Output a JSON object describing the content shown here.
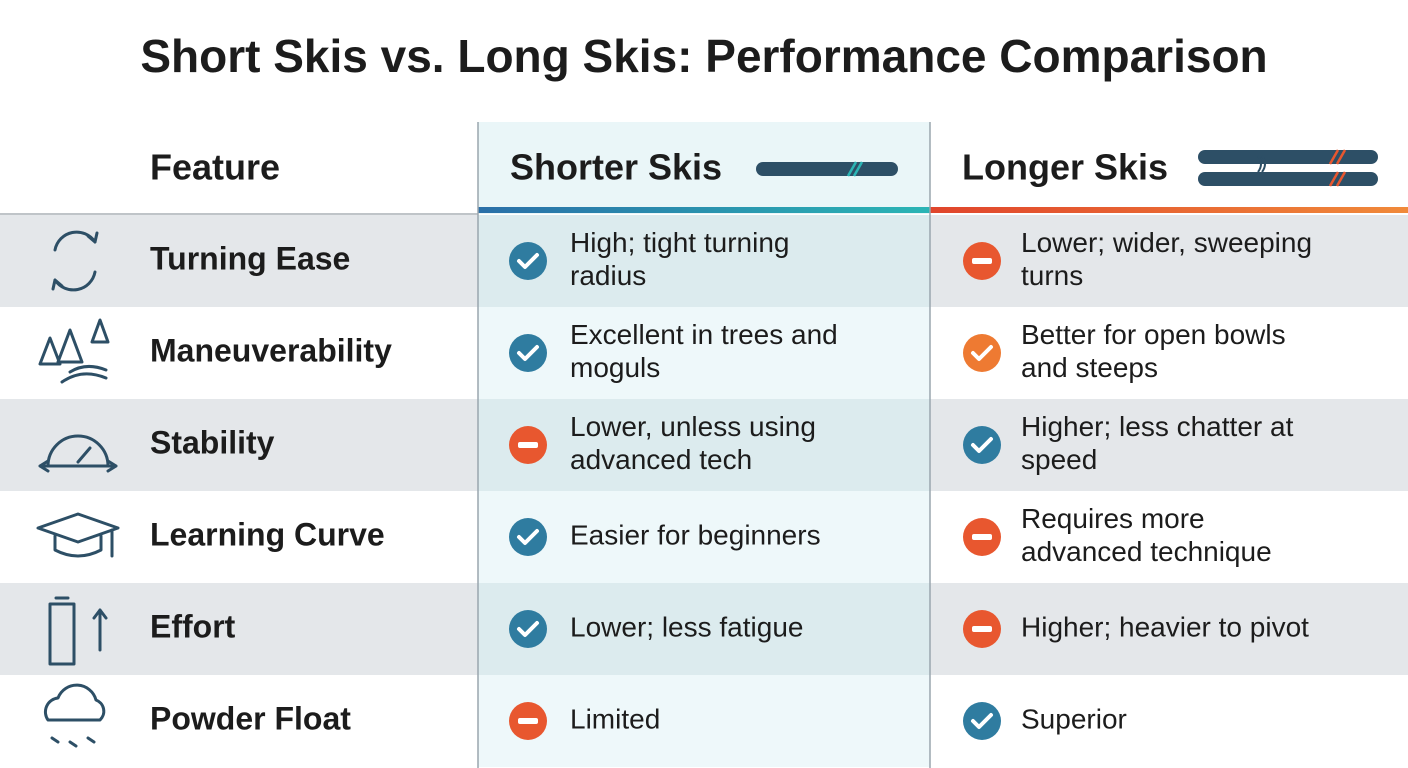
{
  "header": {
    "title": "Short Skis vs. Long Skis: Performance Comparison"
  },
  "table": {
    "columns": [
      "Feature",
      "Shorter Skis",
      "Longer Skis"
    ],
    "rows": [
      [
        "Turning Ease",
        [
          "High; tight turning",
          "radius"
        ],
        [
          "Lower; wider, sweeping",
          "turns"
        ]
      ],
      [
        "Maneuverability",
        [
          "Excellent in trees and",
          "moguls"
        ],
        [
          "Better for open bowls",
          "and steeps"
        ]
      ],
      [
        "Stability",
        [
          "Lower, unless using",
          "advanced tech"
        ],
        [
          "Higher; less chatter at",
          "speed"
        ]
      ],
      [
        "Learning Curve",
        [
          "Easier for beginners"
        ],
        [
          "Requires more",
          "advanced technique"
        ]
      ],
      [
        "Effort",
        [
          "Lower; less fatigue"
        ],
        [
          "Higher; heavier to pivot"
        ]
      ],
      [
        "Powder Float",
        [
          "Limited"
        ],
        [
          "Superior"
        ]
      ]
    ]
  }
}
